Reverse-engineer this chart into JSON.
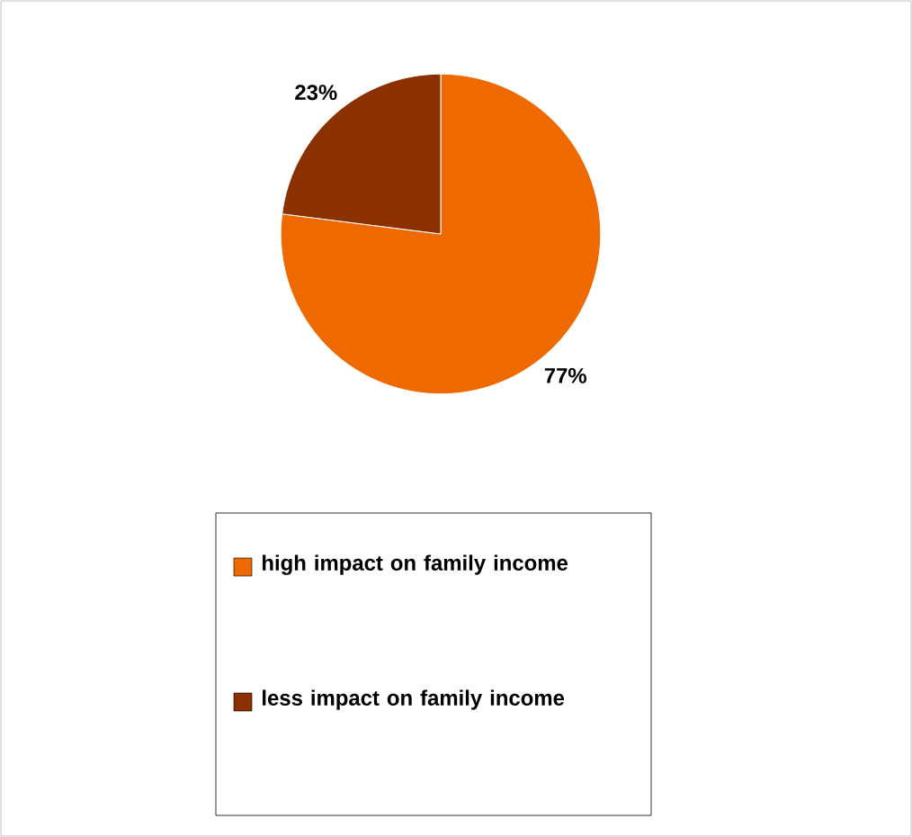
{
  "chart_data": {
    "type": "pie",
    "categories": [
      "high impact on family income",
      "less impact on family income"
    ],
    "values": [
      77,
      23
    ],
    "value_labels": [
      "77%",
      "23%"
    ],
    "colors": [
      "#ee6a00",
      "#8b3000"
    ],
    "legend": "bottom"
  }
}
